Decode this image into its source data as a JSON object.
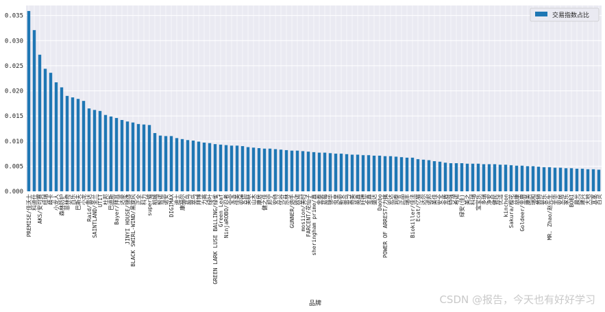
{
  "chart_data": {
    "type": "bar",
    "title": "",
    "xlabel": "品牌",
    "ylabel": "",
    "ylim": [
      0,
      0.037
    ],
    "yticks": [
      "0.000",
      "0.005",
      "0.010",
      "0.015",
      "0.020",
      "0.025",
      "0.030",
      "0.035"
    ],
    "ytick_values": [
      0,
      0.005,
      0.01,
      0.015,
      0.02,
      0.025,
      0.03,
      0.035
    ],
    "legend": "交易指数占比",
    "legend_position": "top-right",
    "grid": true,
    "bar_color": "#1f77b4",
    "background_color": "#eaeaf2",
    "grid_color": "#ffffff",
    "categories": [
      "PREMISE/佳沃士",
      "科迪仕",
      "AKS/安可赛",
      "纽瑞",
      "萌卡",
      "小龙人",
      "森林防护",
      "菲林奇",
      "百乐",
      "巴斯夫",
      "小龙",
      "Raid/雷达",
      "SAINTLAND/圣兰",
      "UTIT",
      "杜邦",
      "巴迪斯",
      "Bayer/拜耳",
      "达豪",
      "JINYI HOUSE/锦逸",
      "BLACK SWIRL-WIND/黑旋风",
      "正全",
      "科力",
      "super猫",
      "稻城",
      "智诺",
      "诺安",
      "DIGIMAX",
      "迪士",
      "康福尔",
      "蓝鸟",
      "翠鸟",
      "拜博",
      "力高",
      "绿叶",
      "GREEN LARK LUSE BALLING/绿雀",
      "Green Leaf",
      "NinjaROBO/忍者",
      "宝宝",
      "佳美",
      "安德",
      "美联",
      "山木",
      "康居",
      "健之佳",
      "邦宁",
      "安特",
      "优谷",
      "乐林",
      "GUNNER/炮手",
      "欧诺",
      "mosiion/美时",
      "FARCENT/花仙子",
      "sheringham prime/鑫",
      "金泰",
      "蓝莓",
      "锦华",
      "虫皇",
      "新安",
      "雷鸟",
      "奇美",
      "英鑫",
      "旺德",
      "金鑫",
      "盛达",
      "Daobo",
      "POWER OF ARREST/力擒",
      "宏达",
      "润泰",
      "正品",
      "瑞丰",
      "Biokiller/佳法",
      "Ecat/亿猫",
      "达尔",
      "诺邦",
      "美佳",
      "安全",
      "金盾",
      "特强",
      "希诺",
      "绿安(佳)",
      "美之",
      "科瑞",
      "宝宝乐",
      "多瑞",
      "净安",
      "健民",
      "优洁",
      "kinchon",
      "Sakura/樱花",
      "益康",
      "Goldeer/金鹿",
      "康美",
      "瑞和",
      "黄狮",
      "爱乐",
      "MR. Zhao/赵先生",
      "圣华",
      "安居",
      "家乐",
      "BOBI",
      "晨光",
      "建兴",
      "大地",
      "宜家",
      "百灵"
    ],
    "values": [
      0.0359,
      0.0321,
      0.0272,
      0.0244,
      0.0236,
      0.0217,
      0.0207,
      0.019,
      0.0187,
      0.0184,
      0.018,
      0.0165,
      0.0162,
      0.016,
      0.0152,
      0.0149,
      0.0146,
      0.0142,
      0.0139,
      0.0137,
      0.0134,
      0.0133,
      0.0132,
      0.0116,
      0.0111,
      0.011,
      0.011,
      0.0106,
      0.0104,
      0.0102,
      0.0101,
      0.0099,
      0.0097,
      0.0096,
      0.0094,
      0.0093,
      0.0092,
      0.0091,
      0.0091,
      0.009,
      0.0088,
      0.0087,
      0.0086,
      0.0085,
      0.0085,
      0.0084,
      0.0083,
      0.0082,
      0.0081,
      0.0081,
      0.008,
      0.0079,
      0.0078,
      0.0077,
      0.0077,
      0.0076,
      0.0075,
      0.0075,
      0.0074,
      0.0073,
      0.0073,
      0.0072,
      0.0072,
      0.0071,
      0.0071,
      0.007,
      0.007,
      0.0069,
      0.0068,
      0.0067,
      0.0067,
      0.0064,
      0.0063,
      0.0062,
      0.006,
      0.0059,
      0.0057,
      0.0056,
      0.0056,
      0.0056,
      0.0055,
      0.0055,
      0.0055,
      0.0054,
      0.0054,
      0.0054,
      0.0053,
      0.0053,
      0.0052,
      0.0051,
      0.0051,
      0.005,
      0.005,
      0.0049,
      0.0048,
      0.0048,
      0.0047,
      0.0047,
      0.0046,
      0.0046,
      0.0045,
      0.0045,
      0.0044,
      0.0044,
      0.0043
    ]
  },
  "watermark": "CSDN @报告，今天也有好好学习"
}
